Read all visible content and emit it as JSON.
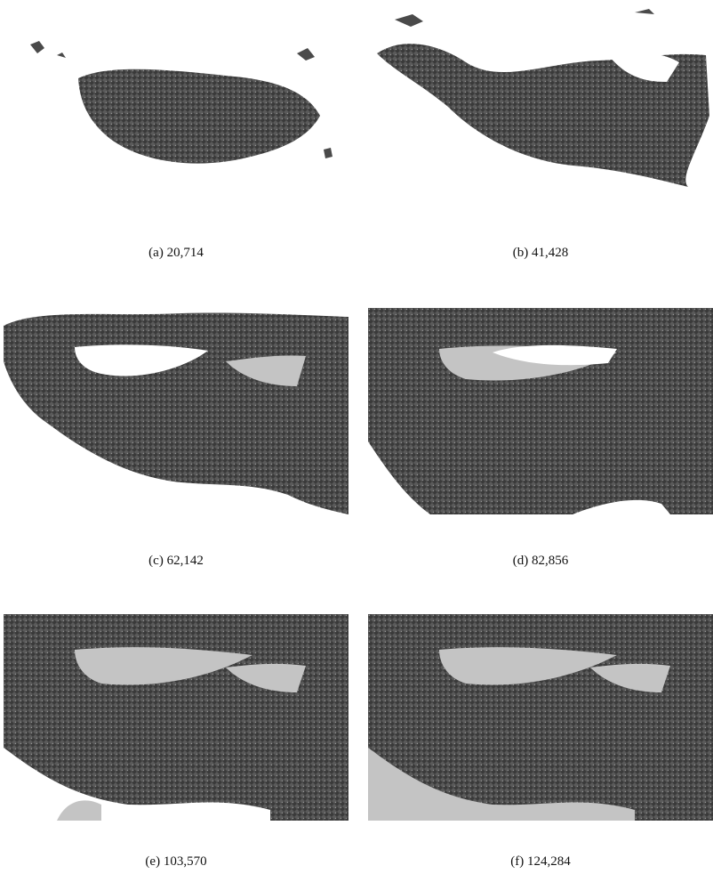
{
  "figure": {
    "panels": [
      {
        "label": "(a) 20,714",
        "fill": 0.17
      },
      {
        "label": "(b) 41,428",
        "fill": 0.33
      },
      {
        "label": "(c) 62,142",
        "fill": 0.5
      },
      {
        "label": "(d) 82,856",
        "fill": 0.67
      },
      {
        "label": "(e) 103,570",
        "fill": 0.83
      },
      {
        "label": "(f) 124,284",
        "fill": 1.0
      }
    ],
    "colors": {
      "terrain_dark": "#3f3f3f",
      "terrain_mid": "#6b6b6b",
      "flat": "#c4c4c4",
      "background": "#ffffff"
    }
  }
}
